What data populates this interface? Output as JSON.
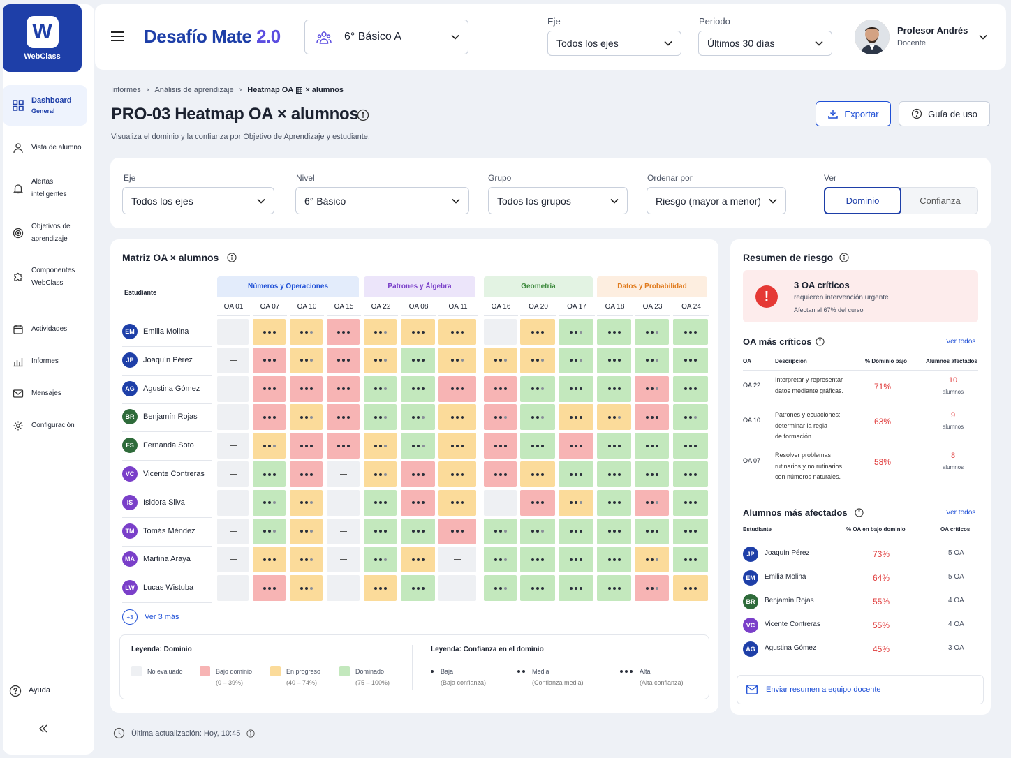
{
  "app": {
    "logo_letter": "W",
    "logo_name": "WebClass",
    "title": "Desafío Mate",
    "version": "2.0"
  },
  "sidebar": {
    "items": [
      {
        "label": "Dashboard",
        "sub": "General",
        "icon": "grid-icon"
      },
      {
        "label": "Vista de alumno",
        "icon": "user-icon"
      },
      {
        "label": "Alertas",
        "label2": "inteligentes",
        "icon": "bell-icon"
      },
      {
        "label": "Objetivos de",
        "label2": "aprendizaje",
        "icon": "target-icon"
      },
      {
        "label": "Componentes",
        "label2": "WebClass",
        "icon": "puzzle-icon"
      },
      {
        "label": "Actividades",
        "icon": "calendar-icon"
      },
      {
        "label": "Informes",
        "icon": "bar-chart-icon"
      },
      {
        "label": "Mensajes",
        "icon": "mail-icon"
      },
      {
        "label": "Configuración",
        "icon": "gear-icon"
      }
    ],
    "help": "Ayuda"
  },
  "topbar": {
    "course": "6° Básico A",
    "eje_label": "Eje",
    "eje_value": "Todos los ejes",
    "periodo_label": "Periodo",
    "periodo_value": "Últimos 30 días",
    "user_name": "Profesor Andrés",
    "user_role": "Docente"
  },
  "breadcrumb": {
    "b1": "Informes",
    "b2": "Análisis de aprendizaje",
    "b3": "Heatmap OA",
    "b3b": "× alumnos"
  },
  "page": {
    "title": "PRO-03 Heatmap OA × alumnos",
    "subtitle": "Visualiza el dominio y la confianza por Objetivo de Aprendizaje y estudiante.",
    "export": "Exportar",
    "guide": "Guía de uso"
  },
  "filters": {
    "eje_label": "Eje",
    "eje": "Todos los ejes",
    "nivel_label": "Nivel",
    "nivel": "6° Básico",
    "grupo_label": "Grupo",
    "grupo": "Todos los grupos",
    "orden_label": "Ordenar por",
    "orden": "Riesgo (mayor a menor)",
    "ver_label": "Ver",
    "ver_dominio": "Dominio",
    "ver_confianza": "Confianza"
  },
  "matrix": {
    "title": "Matriz OA × alumnos",
    "student_header": "Estudiante",
    "groups": [
      {
        "name": "Números y Operaciones",
        "bg": "#e3ecfb",
        "fg": "#1e4fd6"
      },
      {
        "name": "Patrones y Álgebra",
        "bg": "#ece5fa",
        "fg": "#7a3fc9"
      },
      {
        "name": "Geometría",
        "bg": "#e3f3e3",
        "fg": "#3d8a3d"
      },
      {
        "name": "Datos y Probabilidad",
        "bg": "#fdeee0",
        "fg": "#e07b1e"
      }
    ],
    "columns": [
      "OA 01",
      "OA 07",
      "OA 10",
      "OA 15",
      "OA 22",
      "OA 08",
      "OA 11",
      "OA 16",
      "OA 20",
      "OA 17",
      "OA 18",
      "OA 23",
      "OA 24"
    ],
    "colors": {
      "N": "#eef0f3",
      "B": "#f7b4b4",
      "P": "#fbdb9a",
      "D": "#c3e8bd"
    },
    "students": [
      {
        "initials": "EM",
        "name": "Emilia Molina",
        "color": "#1e3fa8",
        "cells": [
          "N0",
          "P3",
          "P2",
          "B3",
          "P2",
          "P3",
          "P3",
          "N0",
          "P3",
          "D2",
          "D3",
          "D2",
          "D3"
        ]
      },
      {
        "initials": "JP",
        "name": "Joaquín Pérez",
        "color": "#1e3fa8",
        "cells": [
          "N0",
          "B3",
          "P2",
          "B3",
          "P2",
          "D3",
          "P2",
          "P2",
          "P2",
          "D2",
          "D3",
          "D2",
          "D3"
        ]
      },
      {
        "initials": "AG",
        "name": "Agustina Gómez",
        "color": "#1e3fa8",
        "cells": [
          "N0",
          "B3",
          "B3",
          "B3",
          "D2",
          "D3",
          "B3",
          "B3",
          "D2",
          "D3",
          "D3",
          "B2",
          "D3"
        ]
      },
      {
        "initials": "BR",
        "name": "Benjamín Rojas",
        "color": "#2e6b3a",
        "cells": [
          "N0",
          "B3",
          "P2",
          "B3",
          "D2",
          "D2",
          "P3",
          "B2",
          "D2",
          "P3",
          "P2",
          "B3",
          "D2"
        ]
      },
      {
        "initials": "FS",
        "name": "Fernanda Soto",
        "color": "#2e6b3a",
        "cells": [
          "N0",
          "P2",
          "B3",
          "B3",
          "P2",
          "D2",
          "P3",
          "B3",
          "D3",
          "B3",
          "D3",
          "D3",
          "D3"
        ]
      },
      {
        "initials": "VC",
        "name": "Vicente Contreras",
        "color": "#7a3fc9",
        "cells": [
          "N0",
          "D3",
          "B3",
          "N0",
          "P2",
          "B3",
          "P3",
          "B3",
          "P3",
          "D3",
          "D3",
          "D3",
          "D3"
        ]
      },
      {
        "initials": "IS",
        "name": "Isidora Silva",
        "color": "#7a3fc9",
        "cells": [
          "N0",
          "D2",
          "P2",
          "N0",
          "D3",
          "B3",
          "P3",
          "N0",
          "B3",
          "P2",
          "D3",
          "B2",
          "D3"
        ]
      },
      {
        "initials": "TM",
        "name": "Tomás Méndez",
        "color": "#7a3fc9",
        "cells": [
          "N0",
          "D2",
          "P2",
          "N0",
          "D3",
          "D3",
          "B3",
          "D2",
          "D2",
          "D3",
          "D3",
          "D3",
          "D3"
        ]
      },
      {
        "initials": "MA",
        "name": "Martina Araya",
        "color": "#7a3fc9",
        "cells": [
          "N0",
          "P3",
          "P2",
          "N0",
          "D2",
          "P3",
          "N0",
          "D2",
          "D3",
          "D3",
          "D3",
          "P2",
          "D3"
        ]
      },
      {
        "initials": "LW",
        "name": "Lucas Wistuba",
        "color": "#7a3fc9",
        "cells": [
          "N0",
          "B3",
          "P2",
          "N0",
          "P3",
          "D3",
          "N0",
          "D2",
          "D3",
          "D3",
          "D3",
          "B2",
          "P3"
        ]
      }
    ],
    "more_badge": "+3",
    "more_label": "Ver 3 más"
  },
  "legend": {
    "dom_title": "Leyenda: Dominio",
    "dom": [
      {
        "label": "No evaluado",
        "range": "",
        "color": "#eef0f3"
      },
      {
        "label": "Bajo dominio",
        "range": "(0 – 39%)",
        "color": "#f7b4b4"
      },
      {
        "label": "En progreso",
        "range": "(40 – 74%)",
        "color": "#fbdb9a"
      },
      {
        "label": "Dominado",
        "range": "(75 – 100%)",
        "color": "#c3e8bd"
      }
    ],
    "conf_title": "Leyenda: Confianza en el dominio",
    "conf": [
      {
        "label": "Baja",
        "sub": "(Baja confianza)"
      },
      {
        "label": "Media",
        "sub": "(Confianza media)"
      },
      {
        "label": "Alta",
        "sub": "(Alta confianza)"
      }
    ]
  },
  "risk": {
    "title": "Resumen de riesgo",
    "alert_title": "3 OA críticos",
    "alert_sub": "requieren intervención urgente",
    "alert_note": "Afectan al 67% del curso",
    "critical_title": "OA más críticos",
    "view_all": "Ver todos",
    "crit_headers": [
      "OA",
      "Descripción",
      "% Dominio bajo",
      "Alumnos afectados"
    ],
    "critical": [
      {
        "oa": "OA 22",
        "desc": [
          "Interpretar y representar",
          "datos mediante gráficas."
        ],
        "pct": "71%",
        "count": "10",
        "unit": "alumnos"
      },
      {
        "oa": "OA 10",
        "desc": [
          "Patrones y ecuaciones:",
          "determinar la regla",
          "de formación."
        ],
        "pct": "63%",
        "count": "9",
        "unit": "alumnos"
      },
      {
        "oa": "OA 07",
        "desc": [
          "Resolver problemas",
          "rutinarios y no rutinarios",
          "con números naturales."
        ],
        "pct": "58%",
        "count": "8",
        "unit": "alumnos"
      }
    ],
    "affected_title": "Alumnos más afectados",
    "aff_headers": [
      "Estudiante",
      "% OA en bajo dominio",
      "OA críticos"
    ],
    "affected": [
      {
        "initials": "JP",
        "name": "Joaquín Pérez",
        "pct": "73%",
        "oa": "5 OA",
        "color": "#1e3fa8"
      },
      {
        "initials": "EM",
        "name": "Emilia Molina",
        "pct": "64%",
        "oa": "5 OA",
        "color": "#1e3fa8"
      },
      {
        "initials": "BR",
        "name": "Benjamín Rojas",
        "pct": "55%",
        "oa": "4 OA",
        "color": "#2e6b3a"
      },
      {
        "initials": "VC",
        "name": "Vicente Contreras",
        "pct": "55%",
        "oa": "4 OA",
        "color": "#7a3fc9"
      },
      {
        "initials": "AG",
        "name": "Agustina Gómez",
        "pct": "45%",
        "oa": "3 OA",
        "color": "#1e3fa8"
      }
    ],
    "send": "Enviar resumen a equipo docente"
  },
  "footer": {
    "updated": "Última actualización: Hoy, 10:45"
  }
}
